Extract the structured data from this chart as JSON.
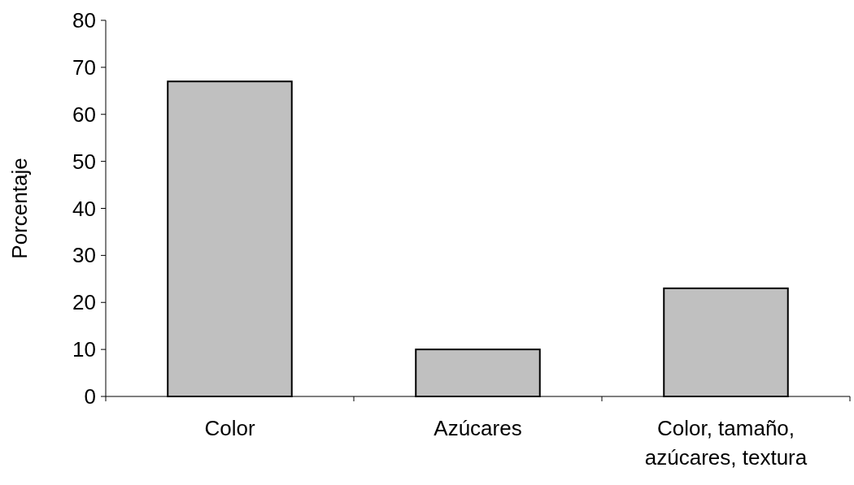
{
  "chart_data": {
    "type": "bar",
    "ylabel": "Porcentaje",
    "categories": [
      "Color",
      "Azúcares",
      "Color, tamaño, azúcares, textura"
    ],
    "values": [
      67,
      10,
      23
    ],
    "color": "#c0c0c0",
    "ylim": [
      0,
      80
    ],
    "yticks": [
      0,
      10,
      20,
      30,
      40,
      50,
      60,
      70,
      80
    ],
    "grid": false
  }
}
